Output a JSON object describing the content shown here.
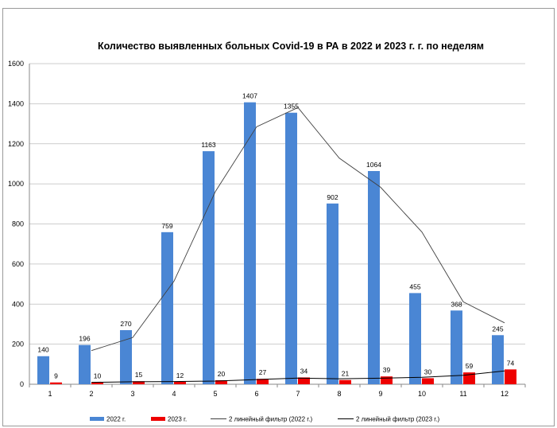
{
  "chart_data": {
    "type": "bar",
    "title": "Количество выявленных больных Covid-19 в РА в 2022 и 2023 г. г. по неделям",
    "xlabel": "",
    "ylabel": "",
    "categories": [
      "1",
      "2",
      "3",
      "4",
      "5",
      "6",
      "7",
      "8",
      "9",
      "10",
      "11",
      "12"
    ],
    "ylim": [
      0,
      1600
    ],
    "yticks": [
      0,
      200,
      400,
      600,
      800,
      1000,
      1200,
      1400,
      1600
    ],
    "grid": true,
    "legend_position": "bottom",
    "series": [
      {
        "name": "2022 г.",
        "color": "#4a86d4",
        "values": [
          140,
          196,
          270,
          759,
          1163,
          1407,
          1355,
          902,
          1064,
          455,
          368,
          245
        ]
      },
      {
        "name": "2023 г.",
        "color": "#ee0000",
        "values": [
          9,
          10,
          15,
          12,
          20,
          27,
          34,
          21,
          39,
          30,
          59,
          74
        ]
      }
    ],
    "trendlines": [
      {
        "name": "2 линейный фильтр (2022 г.)",
        "color": "#404040",
        "values": [
          null,
          168,
          233,
          514.5,
          961,
          1285,
          1381,
          1128.5,
          983,
          759.5,
          411.5,
          306.5
        ]
      },
      {
        "name": "2 линейный фильтр (2023 г.)",
        "color": "#000000",
        "values": [
          null,
          9.5,
          12.5,
          13.5,
          16,
          23.5,
          30.5,
          27.5,
          30,
          34.5,
          44.5,
          66.5
        ]
      }
    ]
  }
}
